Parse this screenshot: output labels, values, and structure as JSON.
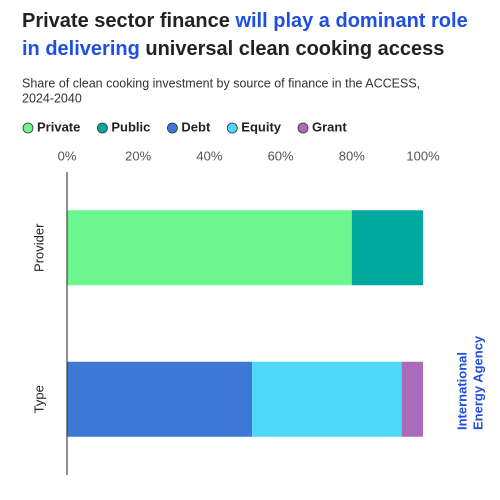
{
  "chart_data": {
    "type": "stacked-bar-horizontal",
    "title_lines": [
      [
        "Private sector finance ",
        "will play a dominant role"
      ],
      [
        "in delivering",
        " universal clean cooking access"
      ]
    ],
    "title_highlight_color": "#1f4fe0",
    "subtitle_lines": [
      "Share of clean cooking investment by source of finance in the ACCESS,",
      "2024-2040"
    ],
    "source_lines": [
      "International",
      "Energy Agency"
    ],
    "categories": [
      "Provider",
      "Type"
    ],
    "series": [
      {
        "name": "Private",
        "color": "#6df58f",
        "values": [
          80,
          null
        ]
      },
      {
        "name": "Public",
        "color": "#00a99d",
        "values": [
          20,
          null
        ]
      },
      {
        "name": "Debt",
        "color": "#3d78d6",
        "values": [
          null,
          52
        ]
      },
      {
        "name": "Equity",
        "color": "#4fd8f7",
        "values": [
          null,
          42
        ]
      },
      {
        "name": "Grant",
        "color": "#a96bba",
        "values": [
          null,
          6
        ]
      }
    ],
    "xlim": [
      0,
      100
    ],
    "xticks": [
      {
        "value": 0,
        "label": "0%"
      },
      {
        "value": 20,
        "label": "20%"
      },
      {
        "value": 40,
        "label": "40%"
      },
      {
        "value": 60,
        "label": "60%"
      },
      {
        "value": 80,
        "label": "80%"
      },
      {
        "value": 100,
        "label": "100%"
      }
    ],
    "grid": false
  }
}
